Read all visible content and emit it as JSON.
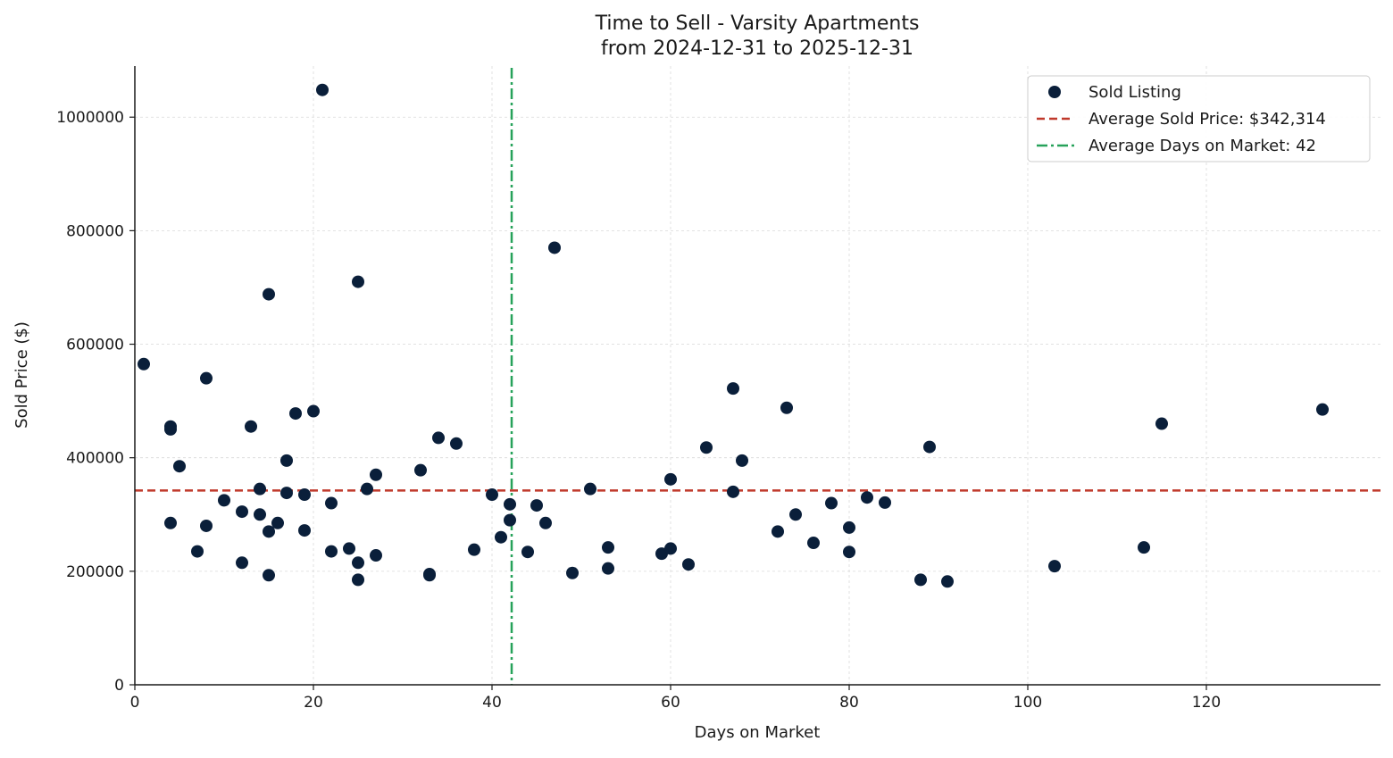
{
  "chart_data": {
    "type": "scatter",
    "title": "Time to Sell - Varsity Apartments",
    "subtitle": "from 2024-12-31 to 2025-12-31",
    "xlabel": "Days on Market",
    "ylabel": "Sold Price ($)",
    "xlim": [
      0,
      139.5
    ],
    "ylim": [
      0,
      1090000
    ],
    "xticks": [
      0,
      20,
      40,
      60,
      80,
      100,
      120
    ],
    "yticks": [
      0,
      200000,
      400000,
      600000,
      800000,
      1000000
    ],
    "grid": true,
    "legend_position": "top-right",
    "colors": {
      "points": "#0a1f3a",
      "avg_price_line": "#c0392b",
      "avg_days_line": "#27a25a",
      "grid": "#d9d9d9",
      "axis": "#1a1a1a"
    },
    "series": [
      {
        "name": "Sold Listing",
        "kind": "scatter",
        "points": [
          [
            1,
            565000
          ],
          [
            4,
            455000
          ],
          [
            4,
            450000
          ],
          [
            4,
            285000
          ],
          [
            5,
            385000
          ],
          [
            7,
            235000
          ],
          [
            8,
            540000
          ],
          [
            8,
            280000
          ],
          [
            10,
            325000
          ],
          [
            12,
            305000
          ],
          [
            12,
            215000
          ],
          [
            13,
            455000
          ],
          [
            14,
            345000
          ],
          [
            14,
            300000
          ],
          [
            15,
            688000
          ],
          [
            15,
            270000
          ],
          [
            15,
            193000
          ],
          [
            16,
            285000
          ],
          [
            17,
            395000
          ],
          [
            17,
            338000
          ],
          [
            18,
            478000
          ],
          [
            19,
            335000
          ],
          [
            19,
            272000
          ],
          [
            20,
            482000
          ],
          [
            21,
            1048000
          ],
          [
            22,
            320000
          ],
          [
            22,
            235000
          ],
          [
            24,
            240000
          ],
          [
            25,
            710000
          ],
          [
            25,
            215000
          ],
          [
            25,
            185000
          ],
          [
            26,
            345000
          ],
          [
            27,
            370000
          ],
          [
            27,
            228000
          ],
          [
            32,
            378000
          ],
          [
            33,
            195000
          ],
          [
            33,
            193000
          ],
          [
            34,
            435000
          ],
          [
            36,
            425000
          ],
          [
            38,
            238000
          ],
          [
            40,
            335000
          ],
          [
            41,
            260000
          ],
          [
            42,
            318000
          ],
          [
            42,
            290000
          ],
          [
            44,
            234000
          ],
          [
            45,
            316000
          ],
          [
            46,
            285000
          ],
          [
            47,
            770000
          ],
          [
            49,
            197000
          ],
          [
            51,
            345000
          ],
          [
            53,
            242000
          ],
          [
            53,
            205000
          ],
          [
            59,
            231000
          ],
          [
            60,
            362000
          ],
          [
            60,
            240000
          ],
          [
            62,
            212000
          ],
          [
            64,
            418000
          ],
          [
            67,
            522000
          ],
          [
            67,
            340000
          ],
          [
            68,
            395000
          ],
          [
            72,
            270000
          ],
          [
            73,
            488000
          ],
          [
            74,
            300000
          ],
          [
            76,
            250000
          ],
          [
            78,
            320000
          ],
          [
            80,
            277000
          ],
          [
            80,
            234000
          ],
          [
            82,
            330000
          ],
          [
            84,
            321000
          ],
          [
            88,
            185000
          ],
          [
            89,
            419000
          ],
          [
            91,
            182000
          ],
          [
            103,
            209000
          ],
          [
            113,
            242000
          ],
          [
            115,
            460000
          ],
          [
            133,
            485000
          ]
        ]
      },
      {
        "name": "Average Sold Price: $342,314",
        "kind": "hline",
        "value": 342314
      },
      {
        "name": "Average Days on Market: 42",
        "kind": "vline",
        "value": 42.2
      }
    ]
  }
}
